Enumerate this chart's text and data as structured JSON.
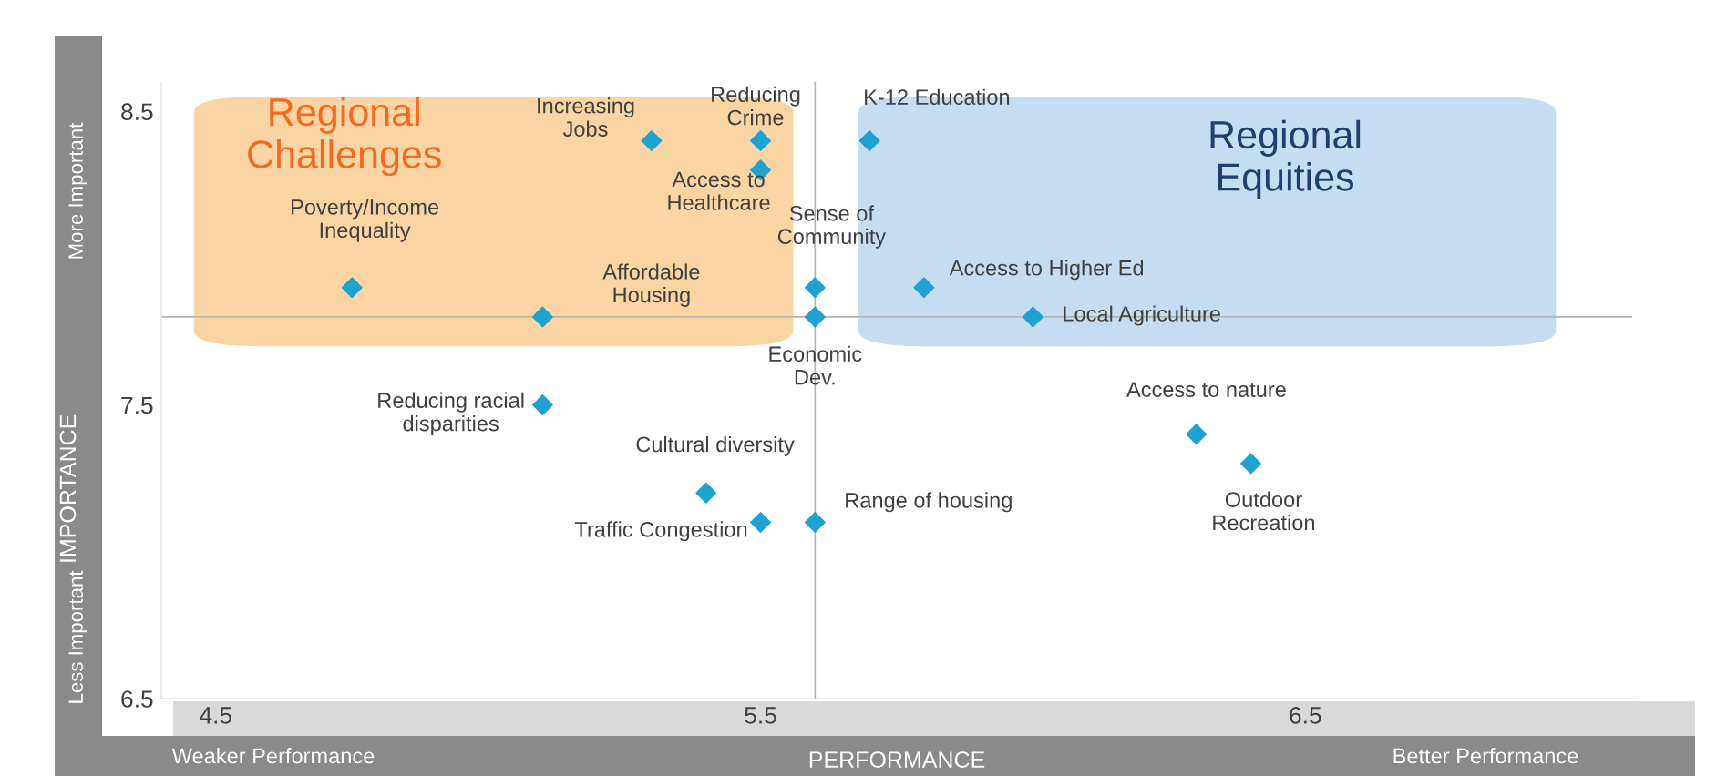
{
  "chart_data": {
    "type": "scatter",
    "xlabel": "PERFORMANCE",
    "ylabel": "IMPORTANCE",
    "x": [
      5.3,
      5.5,
      5.5,
      5.7,
      4.75,
      5.1,
      5.6,
      5.6,
      5.8,
      6.0,
      5.1,
      6.3,
      6.4,
      5.4,
      5.5,
      5.6
    ],
    "series": [
      {
        "color": "#1fa2d0",
        "values": [
          8.4,
          8.4,
          8.3,
          8.4,
          7.9,
          7.8,
          7.9,
          7.8,
          7.9,
          7.8,
          7.5,
          7.4,
          7.3,
          7.2,
          7.1,
          7.1
        ]
      }
    ],
    "marker": "diamond",
    "xlim": [
      4.4,
      7.1
    ],
    "ylim": [
      6.5,
      8.6
    ],
    "xticks": [
      4.5,
      5.5,
      6.5
    ],
    "yticks": [
      6.5,
      7.5,
      8.5
    ],
    "grid": false,
    "legend": false,
    "ref_lines": [
      {
        "axis": "x",
        "value": 5.6,
        "color": "#b4b4b4"
      },
      {
        "axis": "y",
        "value": 7.8,
        "color": "#b4b4b4"
      }
    ],
    "annotations": [
      {
        "text": "Increasing\nJobs",
        "x": 5.3,
        "y": 8.4
      },
      {
        "text": "Reducing\nCrime",
        "x": 5.5,
        "y": 8.4
      },
      {
        "text": "Access to\nHealthcare",
        "x": 5.5,
        "y": 8.3
      },
      {
        "text": "K-12 Education",
        "x": 5.7,
        "y": 8.4
      },
      {
        "text": "Poverty/Income\nInequality",
        "x": 4.75,
        "y": 7.9
      },
      {
        "text": "Affordable\nHousing",
        "x": 5.1,
        "y": 7.8
      },
      {
        "text": "Sense of\nCommunity",
        "x": 5.6,
        "y": 7.9
      },
      {
        "text": "Economic\nDev.",
        "x": 5.6,
        "y": 7.8
      },
      {
        "text": "Access to Higher Ed",
        "x": 5.8,
        "y": 7.9
      },
      {
        "text": "Local Agriculture",
        "x": 6.0,
        "y": 7.8
      },
      {
        "text": "Reducing racial\ndisparities",
        "x": 5.1,
        "y": 7.5
      },
      {
        "text": "Access to nature",
        "x": 6.3,
        "y": 7.4
      },
      {
        "text": "Outdoor\nRecreation",
        "x": 6.4,
        "y": 7.3
      },
      {
        "text": "Cultural diversity",
        "x": 5.4,
        "y": 7.2
      },
      {
        "text": "Traffic Congestion",
        "x": 5.5,
        "y": 7.1
      },
      {
        "text": "Range of housing",
        "x": 5.6,
        "y": 7.1
      },
      "Regional\nChallenges",
      "Regional\nEquities",
      "More Important",
      "Less Important",
      "Weaker Performance",
      "Better Performance"
    ]
  }
}
